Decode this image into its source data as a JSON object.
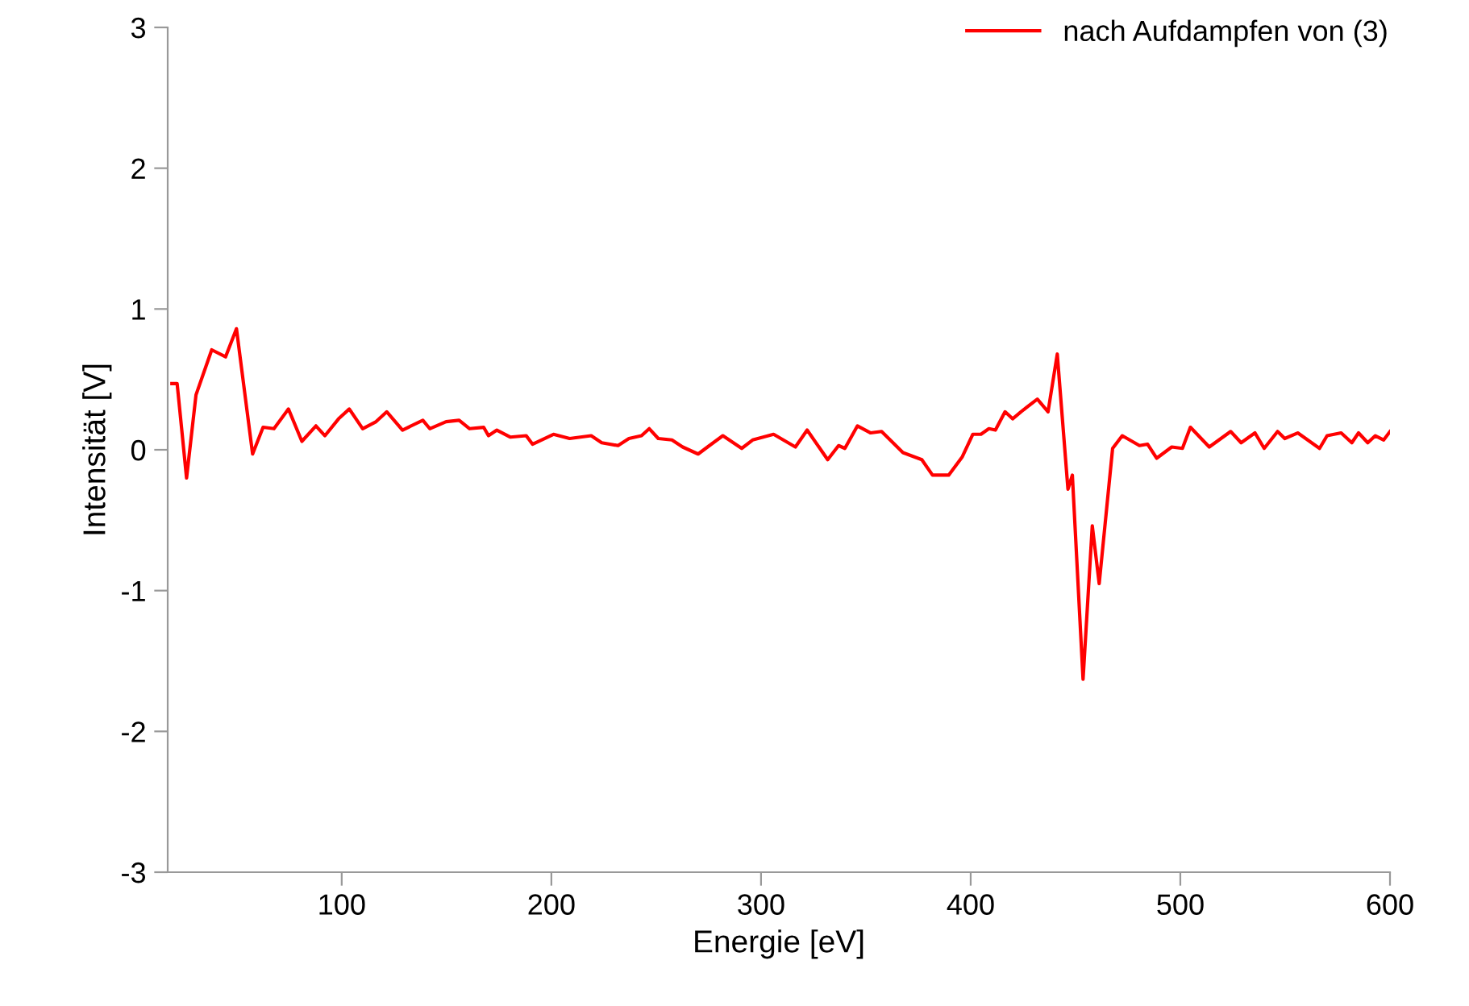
{
  "chart_data": {
    "type": "line",
    "xlabel": "Energie [eV]",
    "ylabel": "Intensität [V]",
    "xlim": [
      17,
      600
    ],
    "ylim": [
      -3,
      3
    ],
    "xticks": [
      100,
      200,
      300,
      400,
      500,
      600
    ],
    "yticks": [
      -3,
      -2,
      -1,
      0,
      1,
      2,
      3
    ],
    "grid": false,
    "legend": "top right",
    "line_style": "solid",
    "series": [
      {
        "name": "nach Aufdampfen von (3)",
        "color": "#ff0000",
        "x": [
          19,
          21.5,
          26,
          30.5,
          38,
          44.6,
          49.8,
          57.5,
          62.5,
          67.7,
          74.6,
          81,
          87.7,
          92,
          98.5,
          103.6,
          110,
          116.4,
          121.5,
          129,
          138.7,
          142,
          149.8,
          156,
          161,
          167.7,
          170,
          174,
          180.5,
          188,
          191,
          201,
          208.7,
          219,
          224,
          231.8,
          237,
          243,
          246.7,
          251,
          257.5,
          262.6,
          270,
          275.4,
          281.8,
          290.8,
          296,
          306,
          316.4,
          322,
          331.8,
          337,
          340,
          346,
          352.3,
          357.5,
          367.7,
          376.7,
          381.8,
          389.5,
          396,
          401,
          404.9,
          408.7,
          411.8,
          416.4,
          420,
          424,
          431.8,
          436.9,
          441.3,
          446.4,
          448.5,
          453.6,
          458,
          461.3,
          467.7,
          472.3,
          480.5,
          484.4,
          488.7,
          495.9,
          501,
          504.8,
          513.8,
          524,
          529,
          535.6,
          540,
          546.4,
          549.8,
          556,
          566.4,
          570,
          576.7,
          581.8,
          585,
          589.4,
          593,
          597,
          600
        ],
        "values": [
          0.47,
          0.47,
          -0.2,
          0.39,
          0.71,
          0.66,
          0.86,
          -0.03,
          0.16,
          0.15,
          0.29,
          0.06,
          0.17,
          0.1,
          0.22,
          0.29,
          0.15,
          0.2,
          0.27,
          0.14,
          0.21,
          0.15,
          0.2,
          0.21,
          0.15,
          0.16,
          0.1,
          0.14,
          0.09,
          0.1,
          0.04,
          0.11,
          0.08,
          0.1,
          0.05,
          0.03,
          0.08,
          0.1,
          0.15,
          0.08,
          0.07,
          0.02,
          -0.03,
          0.03,
          0.1,
          0.01,
          0.07,
          0.11,
          0.02,
          0.14,
          -0.07,
          0.03,
          0.01,
          0.17,
          0.12,
          0.13,
          -0.02,
          -0.07,
          -0.18,
          -0.18,
          -0.05,
          0.11,
          0.11,
          0.15,
          0.14,
          0.27,
          0.22,
          0.27,
          0.36,
          0.27,
          0.68,
          -0.28,
          -0.18,
          -1.63,
          -0.54,
          -0.95,
          0.01,
          0.1,
          0.03,
          0.04,
          -0.06,
          0.02,
          0.01,
          0.16,
          0.02,
          0.13,
          0.05,
          0.12,
          0.01,
          0.13,
          0.08,
          0.12,
          0.01,
          0.1,
          0.12,
          0.05,
          0.12,
          0.05,
          0.1,
          0.07,
          0.13
        ]
      }
    ]
  }
}
